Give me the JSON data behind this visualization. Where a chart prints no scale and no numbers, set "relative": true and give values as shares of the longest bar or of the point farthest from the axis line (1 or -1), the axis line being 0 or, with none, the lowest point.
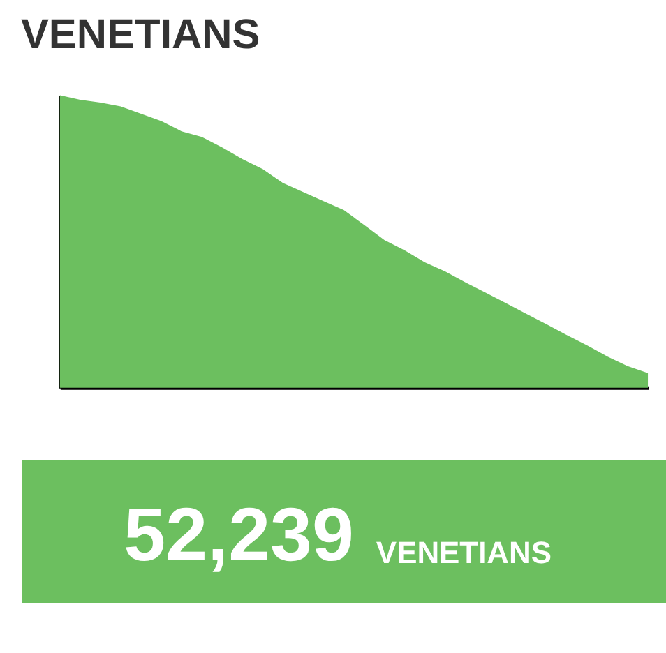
{
  "chart_data": {
    "type": "area",
    "title": "VENETIANS",
    "relative": true,
    "categories": [
      null,
      null,
      null,
      null,
      null,
      null,
      null,
      null,
      null,
      null,
      null,
      null,
      null,
      null,
      null,
      null,
      null,
      null,
      null,
      null,
      null,
      null,
      null,
      null,
      null,
      null,
      null,
      null,
      null,
      null
    ],
    "series": [
      {
        "color": "#6cbf5f",
        "values": [
          1.0,
          0.985,
          0.975,
          0.962,
          0.937,
          0.912,
          0.877,
          0.858,
          0.822,
          0.782,
          0.748,
          0.7,
          0.669,
          0.638,
          0.608,
          0.557,
          0.505,
          0.47,
          0.429,
          0.398,
          0.36,
          0.325,
          0.289,
          0.253,
          0.217,
          0.18,
          0.145,
          0.107,
          0.074,
          0.05
        ]
      }
    ],
    "annotations": [
      "52,239",
      "VENETIANS"
    ]
  }
}
